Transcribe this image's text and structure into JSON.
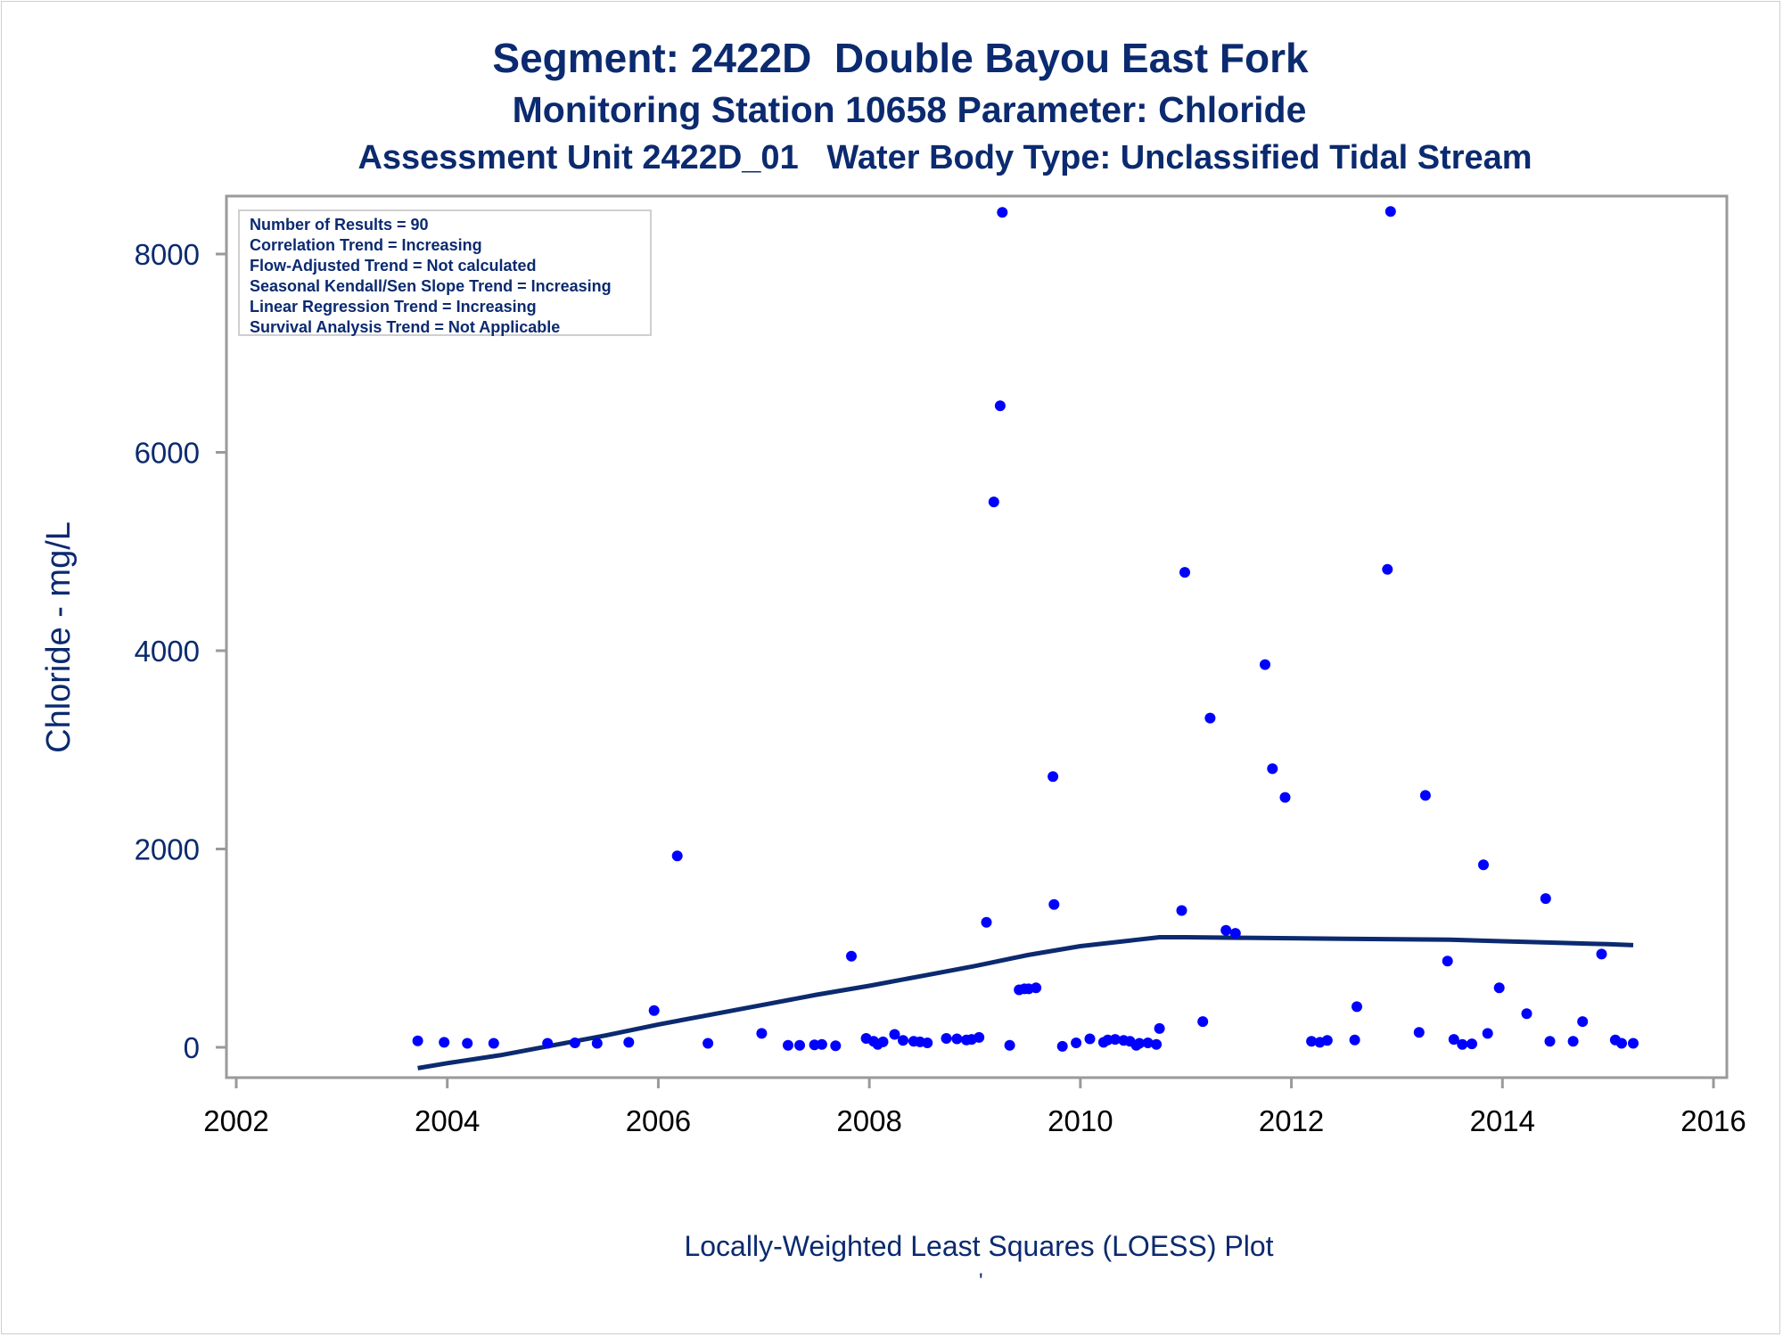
{
  "titles": {
    "line1": "Segment: 2422D  Double Bayou East Fork",
    "line2": "Monitoring Station 10658 Parameter: Chloride",
    "line3": "Assessment Unit 2422D_01   Water Body Type: Unclassified Tidal Stream"
  },
  "footnote": "Locally-Weighted Least Squares (LOESS) Plot",
  "footnote_mark": "'",
  "colors": {
    "text": "#0b2a6f",
    "points": "#0000ff",
    "loess": "#0b2a6f",
    "frame": "#9a9a9a"
  },
  "chart_data": {
    "type": "scatter",
    "ylabel": "Chloride - mg/L",
    "xlabel": "",
    "xlim": [
      2002,
      2016
    ],
    "ylim": [
      -300,
      8600
    ],
    "xticks": [
      2002,
      2004,
      2006,
      2008,
      2010,
      2012,
      2014,
      2016
    ],
    "yticks": [
      0,
      2000,
      4000,
      6000,
      8000
    ],
    "grid": false,
    "legend_box": {
      "placement": "top-left",
      "lines": [
        "Number of Results = 90",
        "Correlation Trend = Increasing",
        "Flow-Adjusted Trend = Not calculated",
        "Seasonal Kendall/Sen Slope Trend = Increasing",
        "Linear Regression Trend = Increasing",
        "Survival Analysis Trend = Not Applicable"
      ]
    },
    "points": [
      [
        2003.72,
        65
      ],
      [
        2003.97,
        50
      ],
      [
        2004.19,
        40
      ],
      [
        2004.44,
        40
      ],
      [
        2004.95,
        40
      ],
      [
        2005.21,
        45
      ],
      [
        2005.42,
        40
      ],
      [
        2005.72,
        50
      ],
      [
        2005.96,
        370
      ],
      [
        2006.18,
        1930
      ],
      [
        2006.47,
        40
      ],
      [
        2006.98,
        140
      ],
      [
        2007.23,
        20
      ],
      [
        2007.34,
        20
      ],
      [
        2007.48,
        25
      ],
      [
        2007.55,
        30
      ],
      [
        2007.68,
        15
      ],
      [
        2007.83,
        920
      ],
      [
        2007.97,
        90
      ],
      [
        2008.04,
        60
      ],
      [
        2008.08,
        30
      ],
      [
        2008.13,
        55
      ],
      [
        2008.24,
        130
      ],
      [
        2008.32,
        70
      ],
      [
        2008.42,
        60
      ],
      [
        2008.48,
        55
      ],
      [
        2008.55,
        45
      ],
      [
        2008.73,
        90
      ],
      [
        2008.83,
        85
      ],
      [
        2008.92,
        75
      ],
      [
        2008.97,
        80
      ],
      [
        2009.04,
        100
      ],
      [
        2009.11,
        1260
      ],
      [
        2009.18,
        5500
      ],
      [
        2009.24,
        6470
      ],
      [
        2009.26,
        8420
      ],
      [
        2009.33,
        20
      ],
      [
        2009.42,
        580
      ],
      [
        2009.47,
        590
      ],
      [
        2009.51,
        590
      ],
      [
        2009.58,
        600
      ],
      [
        2009.74,
        2730
      ],
      [
        2009.75,
        1440
      ],
      [
        2009.83,
        10
      ],
      [
        2009.96,
        45
      ],
      [
        2010.09,
        85
      ],
      [
        2010.22,
        50
      ],
      [
        2010.26,
        75
      ],
      [
        2010.33,
        80
      ],
      [
        2010.41,
        70
      ],
      [
        2010.47,
        60
      ],
      [
        2010.53,
        20
      ],
      [
        2010.56,
        40
      ],
      [
        2010.64,
        45
      ],
      [
        2010.72,
        30
      ],
      [
        2010.75,
        190
      ],
      [
        2010.96,
        1380
      ],
      [
        2010.99,
        4790
      ],
      [
        2011.16,
        260
      ],
      [
        2011.23,
        3320
      ],
      [
        2011.38,
        1180
      ],
      [
        2011.47,
        1150
      ],
      [
        2011.75,
        3860
      ],
      [
        2011.82,
        2810
      ],
      [
        2011.94,
        2520
      ],
      [
        2012.19,
        60
      ],
      [
        2012.27,
        50
      ],
      [
        2012.34,
        70
      ],
      [
        2012.6,
        75
      ],
      [
        2012.62,
        410
      ],
      [
        2012.91,
        4820
      ],
      [
        2012.94,
        8430
      ],
      [
        2013.21,
        150
      ],
      [
        2013.27,
        2540
      ],
      [
        2013.48,
        870
      ],
      [
        2013.54,
        80
      ],
      [
        2013.62,
        30
      ],
      [
        2013.71,
        35
      ],
      [
        2013.82,
        1840
      ],
      [
        2013.86,
        140
      ],
      [
        2013.97,
        600
      ],
      [
        2014.23,
        340
      ],
      [
        2014.41,
        1500
      ],
      [
        2014.45,
        60
      ],
      [
        2014.67,
        60
      ],
      [
        2014.76,
        260
      ],
      [
        2014.94,
        940
      ],
      [
        2015.07,
        75
      ],
      [
        2015.13,
        40
      ],
      [
        2015.24,
        40
      ]
    ],
    "loess": [
      [
        2003.72,
        -210
      ],
      [
        2004.0,
        -160
      ],
      [
        2004.5,
        -80
      ],
      [
        2005.0,
        20
      ],
      [
        2005.5,
        120
      ],
      [
        2006.0,
        230
      ],
      [
        2006.5,
        330
      ],
      [
        2007.0,
        430
      ],
      [
        2007.5,
        530
      ],
      [
        2008.0,
        620
      ],
      [
        2008.5,
        720
      ],
      [
        2009.0,
        820
      ],
      [
        2009.5,
        930
      ],
      [
        2010.0,
        1020
      ],
      [
        2010.5,
        1080
      ],
      [
        2010.75,
        1110
      ],
      [
        2011.0,
        1110
      ],
      [
        2011.5,
        1105
      ],
      [
        2012.0,
        1100
      ],
      [
        2012.5,
        1095
      ],
      [
        2013.0,
        1090
      ],
      [
        2013.5,
        1085
      ],
      [
        2014.0,
        1070
      ],
      [
        2014.5,
        1055
      ],
      [
        2015.0,
        1040
      ],
      [
        2015.24,
        1030
      ]
    ]
  }
}
